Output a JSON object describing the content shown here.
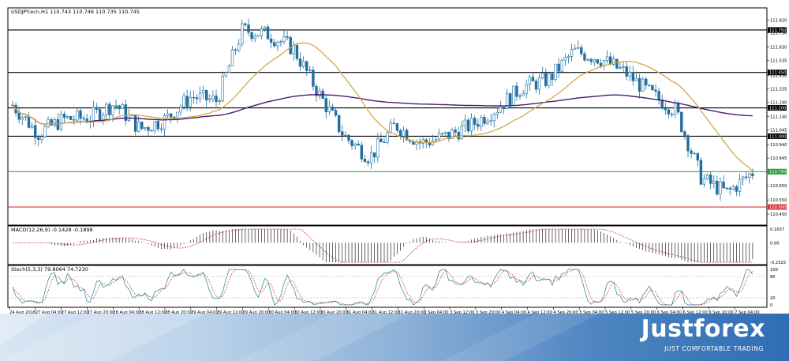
{
  "chart": {
    "symbol_header": "USDJPY.ecn,H1  110.743 110.746 110.735 110.745",
    "macd_header": "MACD(12,26,9) -0.1428 -0.1898",
    "stoch_header": "Stoch(5,3,3) 79.8064 74.7230",
    "price_ticks": [
      "111.820",
      "111.730",
      "111.630",
      "111.535",
      "111.430",
      "111.335",
      "111.240",
      "111.140",
      "111.045",
      "110.940",
      "110.845",
      "110.750",
      "110.650",
      "110.550",
      "110.450"
    ],
    "level_labels": {
      "l1": "111.750",
      "l2": "111.450",
      "l3": "111.200",
      "l4": "111.000",
      "l5": "110.750",
      "l6": "110.500"
    },
    "macd_ticks": {
      "top": "0.1637",
      "zero": "0.00",
      "bottom": "-0.2325"
    },
    "stoch_ticks": {
      "top": "100",
      "upper": "80",
      "lower": "20",
      "bottom": "0"
    },
    "time_labels": [
      "24 Aug 2018",
      "27 Aug 04:00",
      "27 Aug 12:00",
      "27 Aug 20:00",
      "28 Aug 04:00",
      "28 Aug 12:00",
      "28 Aug 20:00",
      "29 Aug 04:00",
      "29 Aug 12:00",
      "29 Aug 20:00",
      "30 Aug 04:00",
      "30 Aug 12:00",
      "30 Aug 20:00",
      "31 Aug 04:00",
      "31 Aug 12:00",
      "31 Aug 20:00",
      "3 Sep 04:00",
      "3 Sep 12:00",
      "3 Sep 20:00",
      "4 Sep 04:00",
      "4 Sep 12:00",
      "4 Sep 20:00",
      "5 Sep 04:00",
      "5 Sep 12:00",
      "5 Sep 20:00",
      "6 Sep 04:00",
      "6 Sep 12:00",
      "6 Sep 20:00",
      "7 Sep 04:00"
    ],
    "colors": {
      "candle": "#1f6e9f",
      "ma_slow": "#4b1a6e",
      "ma_fast": "#d3a94b",
      "level": "#000000",
      "level_green": "#2a9a3a",
      "level_red": "#d43a3a",
      "macd_signal": "#c0392b",
      "stoch_main": "#3a8fa0",
      "stoch_signal": "#c0392b"
    }
  },
  "chart_data": {
    "type": "candlestick",
    "title": "USDJPY.ecn,H1",
    "ohlc_current": {
      "open": 110.743,
      "high": 110.746,
      "low": 110.735,
      "close": 110.745
    },
    "horizontal_levels": [
      111.75,
      111.45,
      111.2,
      111.0,
      110.75,
      110.5
    ],
    "ylim": [
      110.4,
      111.85
    ],
    "close_path": [
      [
        "24 Aug 2018",
        111.22
      ],
      [
        "27 Aug 04:00",
        111.02
      ],
      [
        "27 Aug 12:00",
        111.12
      ],
      [
        "27 Aug 20:00",
        111.13
      ],
      [
        "28 Aug 04:00",
        111.23
      ],
      [
        "28 Aug 12:00",
        111.05
      ],
      [
        "28 Aug 20:00",
        111.12
      ],
      [
        "29 Aug 04:00",
        111.28
      ],
      [
        "29 Aug 12:00",
        111.25
      ],
      [
        "29 Aug 20:00",
        111.75
      ],
      [
        "30 Aug 04:00",
        111.72
      ],
      [
        "30 Aug 12:00",
        111.62
      ],
      [
        "30 Aug 20:00",
        111.3
      ],
      [
        "31 Aug 04:00",
        111.0
      ],
      [
        "31 Aug 12:00",
        110.85
      ],
      [
        "31 Aug 20:00",
        111.08
      ],
      [
        "3 Sep 04:00",
        110.95
      ],
      [
        "3 Sep 12:00",
        111.0
      ],
      [
        "3 Sep 20:00",
        111.08
      ],
      [
        "4 Sep 04:00",
        111.2
      ],
      [
        "4 Sep 12:00",
        111.35
      ],
      [
        "4 Sep 20:00",
        111.4
      ],
      [
        "5 Sep 04:00",
        111.6
      ],
      [
        "5 Sep 12:00",
        111.55
      ],
      [
        "5 Sep 20:00",
        111.45
      ],
      [
        "6 Sep 04:00",
        111.3
      ],
      [
        "6 Sep 12:00",
        111.18
      ],
      [
        "6 Sep 20:00",
        110.7
      ],
      [
        "7 Sep 04:00",
        110.6
      ],
      [
        "7 Sep 12:00",
        110.745
      ]
    ],
    "macd_range": [
      -0.2325,
      0.1637
    ],
    "stoch_range": [
      0,
      100
    ]
  },
  "footer": {
    "brand": "Justforex",
    "slogan": "JUST COMFORTABLE TRADING"
  }
}
